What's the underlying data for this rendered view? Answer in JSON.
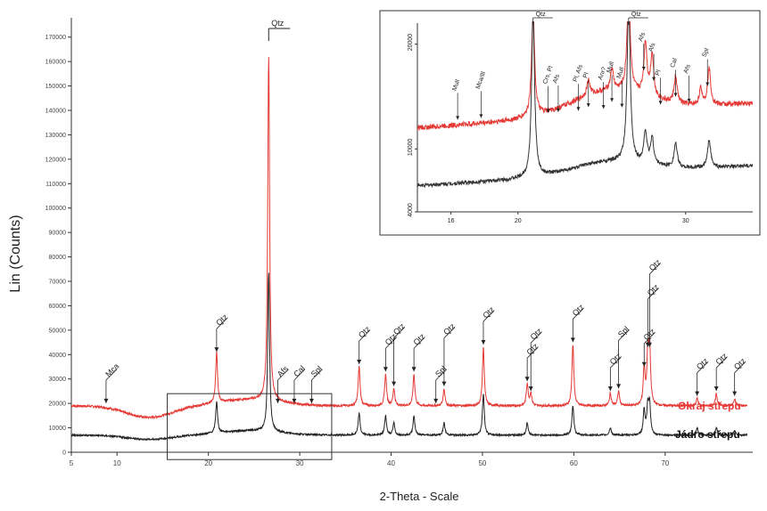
{
  "chart_data": [
    {
      "type": "line",
      "title": "",
      "xlabel": "2-Theta - Scale",
      "ylabel": "Lin (Counts)",
      "xlim": [
        5,
        79
      ],
      "ylim": [
        0,
        175000
      ],
      "x_ticks": [
        "5",
        "10",
        "20",
        "30",
        "40",
        "50",
        "60",
        "70"
      ],
      "y_ticks": [
        "0",
        "10000",
        "20000",
        "30000",
        "40000",
        "50000",
        "60000",
        "70000",
        "80000",
        "90000",
        "100000",
        "110000",
        "120000",
        "130000",
        "140000",
        "150000",
        "160000",
        "170000"
      ],
      "series": [
        {
          "name": "Okraj střepu",
          "color": "#e53935",
          "baseline": 19000,
          "peaks": [
            [
              20.9,
              40000
            ],
            [
              26.6,
              160000
            ],
            [
              36.5,
              35000
            ],
            [
              39.4,
              32000
            ],
            [
              40.3,
              26000
            ],
            [
              42.5,
              32000
            ],
            [
              45.8,
              26000
            ],
            [
              50.1,
              43000
            ],
            [
              54.9,
              28000
            ],
            [
              55.3,
              24000
            ],
            [
              59.9,
              44000
            ],
            [
              64.0,
              24000
            ],
            [
              64.9,
              25000
            ],
            [
              67.7,
              34000
            ],
            [
              68.1,
              38000
            ],
            [
              68.3,
              42000
            ],
            [
              73.5,
              22000
            ],
            [
              75.6,
              24000
            ],
            [
              77.6,
              22000
            ]
          ]
        },
        {
          "name": "Jádro střepu",
          "color": "#222222",
          "baseline": 7000,
          "peaks": [
            [
              20.9,
              20000
            ],
            [
              26.6,
              72000
            ],
            [
              36.5,
              16000
            ],
            [
              39.4,
              15000
            ],
            [
              40.3,
              12000
            ],
            [
              42.5,
              15000
            ],
            [
              45.8,
              12000
            ],
            [
              50.1,
              24000
            ],
            [
              54.9,
              12000
            ],
            [
              59.9,
              19000
            ],
            [
              64.0,
              10000
            ],
            [
              67.7,
              17000
            ],
            [
              68.1,
              18000
            ],
            [
              68.3,
              19000
            ],
            [
              73.5,
              10000
            ],
            [
              75.6,
              10000
            ],
            [
              77.6,
              9000
            ]
          ]
        }
      ],
      "annotations": [
        {
          "label": "Mca",
          "x": 8.8
        },
        {
          "label": "Qtz",
          "x": 20.9
        },
        {
          "label": "Qtz",
          "x": 26.6
        },
        {
          "label": "Afs",
          "x": 27.6
        },
        {
          "label": "Cal",
          "x": 29.4
        },
        {
          "label": "Spl",
          "x": 31.3
        },
        {
          "label": "Qtz",
          "x": 36.5
        },
        {
          "label": "Qtz",
          "x": 39.4
        },
        {
          "label": "Qtz",
          "x": 40.3
        },
        {
          "label": "Qtz",
          "x": 42.5
        },
        {
          "label": "Spl",
          "x": 44.9
        },
        {
          "label": "Qtz",
          "x": 45.8
        },
        {
          "label": "Qtz",
          "x": 50.1
        },
        {
          "label": "Qtz",
          "x": 54.9
        },
        {
          "label": "Qtz",
          "x": 55.3
        },
        {
          "label": "Qtz",
          "x": 59.9
        },
        {
          "label": "Qtz",
          "x": 64.0
        },
        {
          "label": "Spl",
          "x": 64.9
        },
        {
          "label": "Qtz",
          "x": 67.7
        },
        {
          "label": "Qtz",
          "x": 68.1
        },
        {
          "label": "Qtz",
          "x": 68.3
        },
        {
          "label": "Qtz",
          "x": 73.5
        },
        {
          "label": "Qtz",
          "x": 75.6
        },
        {
          "label": "Qtz",
          "x": 77.6
        }
      ],
      "legend": [
        "Okraj střepu",
        "Jádro střepu"
      ]
    },
    {
      "type": "line",
      "title": "",
      "xlim": [
        14,
        34
      ],
      "ylim": [
        4000,
        22000
      ],
      "x_ticks": [
        "16",
        "20",
        "30"
      ],
      "y_ticks": [
        "4000",
        "10000",
        "20000"
      ],
      "series": [
        {
          "name": "Okraj střepu",
          "color": "#e53935",
          "baseline": 12000,
          "peaks": [
            [
              20.9,
              22000
            ],
            [
              24.2,
              13500
            ],
            [
              25.6,
              14000
            ],
            [
              26.6,
              22000
            ],
            [
              27.6,
              17000
            ],
            [
              28.0,
              16000
            ],
            [
              29.4,
              14500
            ],
            [
              30.9,
              13500
            ],
            [
              31.4,
              15500
            ]
          ]
        },
        {
          "name": "Jádro střepu",
          "color": "#333333",
          "baseline": 6500,
          "peaks": [
            [
              20.9,
              22000
            ],
            [
              26.6,
              22000
            ],
            [
              27.6,
              9500
            ],
            [
              28.0,
              9000
            ],
            [
              29.4,
              8800
            ],
            [
              31.4,
              9200
            ]
          ]
        }
      ],
      "annotations": [
        {
          "label": "Mull",
          "x": 16.4
        },
        {
          "label": "Mca/Ill",
          "x": 17.8
        },
        {
          "label": "Qtz",
          "x": 20.9
        },
        {
          "label": "Crs, Pl",
          "x": 21.8
        },
        {
          "label": "Afs",
          "x": 22.4
        },
        {
          "label": "Pl, Afs",
          "x": 23.6
        },
        {
          "label": "Pl",
          "x": 24.2
        },
        {
          "label": "Anr?",
          "x": 25.1
        },
        {
          "label": "Mull",
          "x": 25.6
        },
        {
          "label": "Mull",
          "x": 26.2
        },
        {
          "label": "Qtz",
          "x": 26.6
        },
        {
          "label": "Afs",
          "x": 27.5
        },
        {
          "label": "Afs",
          "x": 28.1
        },
        {
          "label": "Pl",
          "x": 28.5
        },
        {
          "label": "Cal",
          "x": 29.4
        },
        {
          "label": "Afs",
          "x": 30.2
        },
        {
          "label": "Spl",
          "x": 31.3
        }
      ]
    }
  ]
}
